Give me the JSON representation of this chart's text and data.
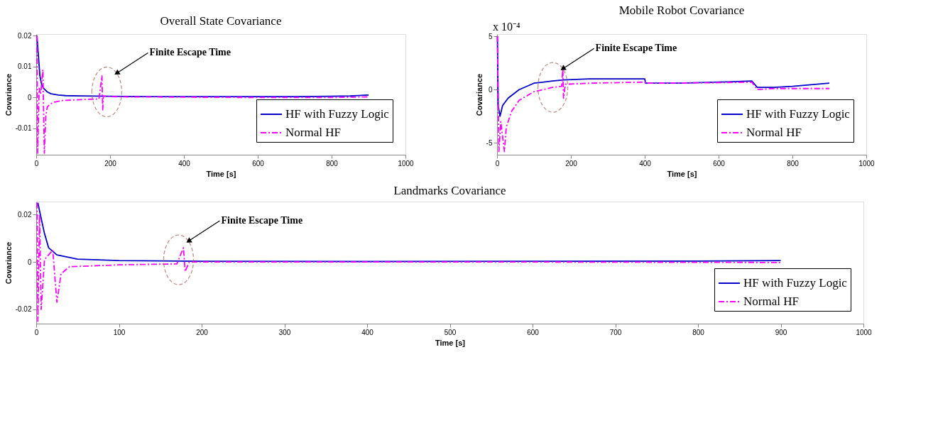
{
  "chart_data": [
    {
      "type": "line",
      "title": "Overall State Covariance",
      "xlabel": "Time [s]",
      "ylabel": "Covariance",
      "xlim": [
        0,
        1000
      ],
      "xticks": [
        0,
        200,
        400,
        600,
        800,
        1000
      ],
      "ylim": [
        -0.0185,
        0.0205
      ],
      "yticks": [
        -0.01,
        0,
        0.01,
        0.02
      ],
      "grid": false,
      "legend": "bottom right",
      "series": [
        {
          "name": "HF with Fuzzy Logic",
          "color": "#0000c8",
          "line_style": "solid",
          "x": [
            2,
            5,
            10,
            15,
            20,
            30,
            40,
            60,
            80,
            120,
            200,
            300,
            400,
            500,
            600,
            700,
            800,
            850,
            900
          ],
          "values": [
            0.02,
            0.015,
            0.007,
            0.004,
            0.003,
            0.0018,
            0.0012,
            0.0008,
            0.0006,
            0.0005,
            0.0004,
            0.0003,
            0.0003,
            0.0003,
            0.0003,
            0.0003,
            0.0004,
            0.0005,
            0.0008
          ]
        },
        {
          "name": "Normal HF",
          "color": "#ff00ff",
          "line_style": "dashdot",
          "x": [
            2,
            4,
            8,
            12,
            18,
            22,
            26,
            30,
            40,
            50,
            70,
            100,
            140,
            170,
            178,
            180,
            182,
            200,
            250,
            400,
            600,
            800,
            900
          ],
          "values": [
            0.02,
            -0.018,
            0.003,
            0.001,
            0.009,
            -0.018,
            -0.006,
            -0.003,
            -0.002,
            -0.0015,
            -0.001,
            -0.0008,
            -0.0006,
            -0.0005,
            0.007,
            -0.004,
            0.0005,
            0.0003,
            0.0002,
            0.0001,
            0.0,
            0.0,
            0.0002
          ]
        }
      ],
      "annotations": [
        {
          "text": "Finite Escape Time",
          "x": 220,
          "y": 0.008
        }
      ]
    },
    {
      "type": "line",
      "title": "Mobile Robot Covariance",
      "xlabel": "Time [s]",
      "ylabel": "Covariance",
      "xlim": [
        0,
        1000
      ],
      "xticks": [
        0,
        200,
        400,
        600,
        800,
        1000
      ],
      "ylim": [
        -6.1,
        5.2
      ],
      "yticks": [
        -5,
        0,
        5
      ],
      "grid": false,
      "legend": "bottom right",
      "series": [
        {
          "name": "HF with Fuzzy Logic",
          "color": "#0000c8",
          "line_style": "solid",
          "x": [
            1,
            3,
            8,
            15,
            30,
            60,
            100,
            150,
            180,
            250,
            400,
            402,
            500,
            600,
            690,
            705,
            750,
            800,
            900
          ],
          "values": [
            5,
            -1.5,
            -2.5,
            -1.5,
            -0.8,
            0,
            0.6,
            0.8,
            0.9,
            1.0,
            1.0,
            0.6,
            0.6,
            0.7,
            0.8,
            0.2,
            0.2,
            0.3,
            0.6
          ]
        },
        {
          "name": "Normal HF",
          "color": "#ff00ff",
          "line_style": "dashdot",
          "x": [
            1,
            5,
            10,
            20,
            25,
            40,
            60,
            100,
            150,
            175,
            178,
            180,
            185,
            250,
            400,
            402,
            600,
            690,
            705,
            750,
            900
          ],
          "values": [
            5,
            -5.8,
            -3,
            -5.8,
            -3.5,
            -2,
            -1,
            -0.2,
            0.2,
            0.3,
            2.0,
            -0.8,
            0.5,
            0.6,
            0.7,
            0.6,
            0.65,
            0.7,
            0,
            0.1,
            0.1
          ]
        }
      ],
      "annotations": [
        "x 10⁻⁴",
        {
          "text": "Finite Escape Time",
          "x": 180,
          "y": 2.0
        }
      ]
    },
    {
      "type": "line",
      "title": "Landmarks Covariance",
      "xlabel": "Time [s]",
      "ylabel": "Covariance",
      "xlim": [
        0,
        1000
      ],
      "xticks": [
        0,
        100,
        200,
        300,
        400,
        500,
        600,
        700,
        800,
        900,
        1000
      ],
      "ylim": [
        -0.026,
        0.0255
      ],
      "yticks": [
        -0.02,
        0,
        0.02
      ],
      "grid": false,
      "legend": "bottom right",
      "series": [
        {
          "name": "HF with Fuzzy Logic",
          "color": "#0000c8",
          "line_style": "solid",
          "x": [
            2,
            5,
            10,
            15,
            25,
            50,
            100,
            200,
            400,
            600,
            800,
            900
          ],
          "values": [
            0.025,
            0.02,
            0.012,
            0.006,
            0.003,
            0.0012,
            0.0006,
            0.0003,
            0.0002,
            0.0003,
            0.0004,
            0.0006
          ]
        },
        {
          "name": "Normal HF",
          "color": "#ff00ff",
          "line_style": "dashdot",
          "x": [
            1,
            2,
            4,
            6,
            10,
            20,
            25,
            30,
            40,
            100,
            170,
            178,
            180,
            185,
            300,
            600,
            900
          ],
          "values": [
            0.025,
            -0.025,
            0.02,
            -0.02,
            0.001,
            0.005,
            -0.017,
            -0.005,
            -0.002,
            -0.0012,
            -0.0008,
            0.006,
            -0.004,
            0.0,
            0.0,
            0.0,
            -0.0002
          ]
        }
      ],
      "annotations": [
        {
          "text": "Finite Escape Time",
          "x": 185,
          "y": 0.009
        }
      ]
    }
  ]
}
